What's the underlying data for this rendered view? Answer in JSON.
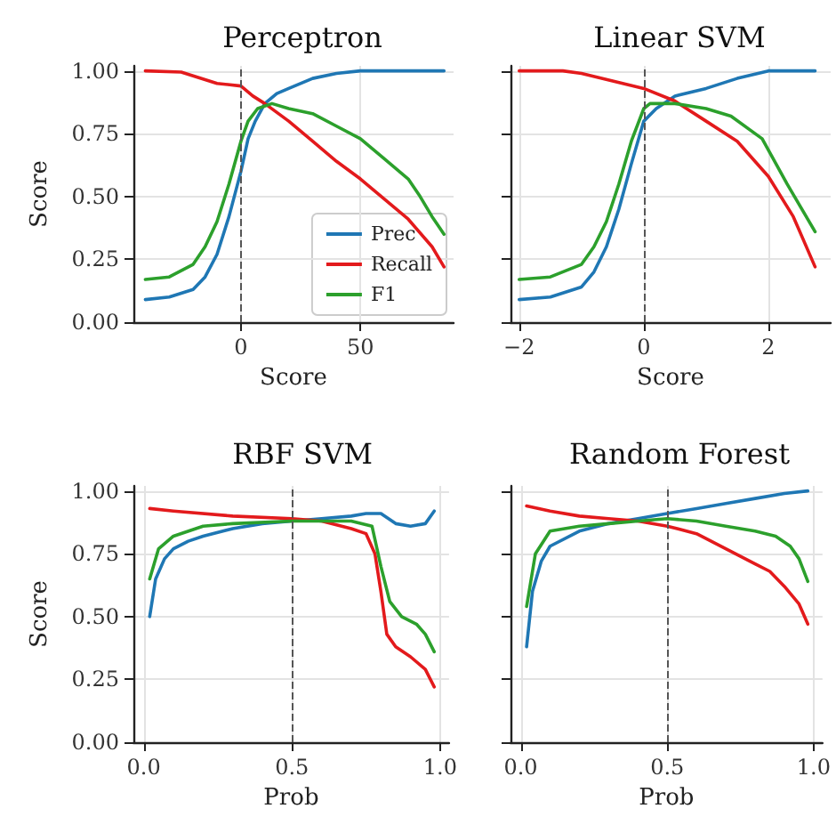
{
  "chart_data": [
    {
      "type": "line",
      "title": "Perceptron",
      "xlabel": "Score",
      "ylabel": "Score",
      "xlim": [
        -45,
        89
      ],
      "xticks": [
        0,
        50
      ],
      "ylim": [
        0,
        1.02
      ],
      "yticks": [
        {
          "value": 0,
          "label": "0.00"
        },
        {
          "value": 0.25,
          "label": "0.25"
        },
        {
          "value": 0.5,
          "label": "0.50"
        },
        {
          "value": 0.75,
          "label": "0.75"
        },
        {
          "value": 1,
          "label": "1.00"
        }
      ],
      "grid": true,
      "legend": "bottom right",
      "marker": "none",
      "ref_lines": [
        {
          "axis": "x",
          "value": 0,
          "color": "#555555",
          "line_style": "dashed"
        }
      ],
      "series": [
        {
          "name": "Prec",
          "color": "#1f77b4",
          "x": [
            -40,
            -30,
            -20,
            -15,
            -10,
            -5,
            0,
            3,
            6,
            10,
            15,
            20,
            30,
            40,
            50,
            60,
            85
          ],
          "values": [
            0.09,
            0.1,
            0.13,
            0.18,
            0.27,
            0.42,
            0.6,
            0.73,
            0.8,
            0.87,
            0.91,
            0.93,
            0.97,
            0.99,
            1.0,
            1.0,
            1.0
          ]
        },
        {
          "name": "Recall",
          "color": "#e31a1c",
          "x": [
            -40,
            -25,
            -20,
            -10,
            0,
            5,
            10,
            20,
            30,
            40,
            50,
            60,
            70,
            80,
            85
          ],
          "values": [
            1.0,
            0.995,
            0.98,
            0.95,
            0.94,
            0.9,
            0.87,
            0.8,
            0.72,
            0.64,
            0.57,
            0.49,
            0.41,
            0.3,
            0.22
          ]
        },
        {
          "name": "F1",
          "color": "#2ca02c",
          "x": [
            -40,
            -30,
            -20,
            -15,
            -10,
            -5,
            0,
            3,
            7,
            13,
            20,
            30,
            40,
            50,
            60,
            70,
            75,
            80,
            85
          ],
          "values": [
            0.17,
            0.18,
            0.23,
            0.3,
            0.4,
            0.55,
            0.72,
            0.8,
            0.85,
            0.87,
            0.85,
            0.83,
            0.78,
            0.73,
            0.65,
            0.57,
            0.5,
            0.42,
            0.35
          ]
        }
      ]
    },
    {
      "type": "line",
      "title": "Linear SVM",
      "xlabel": "Score",
      "xlim": [
        -2.14,
        3.0
      ],
      "xticks": [
        {
          "value": -2,
          "label": "−2"
        },
        0,
        2
      ],
      "ylim": [
        0,
        1.02
      ],
      "yticks": [
        0,
        0.25,
        0.5,
        0.75,
        1
      ],
      "tick_labels": "x",
      "grid": true,
      "marker": "none",
      "ref_lines": [
        {
          "axis": "x",
          "value": 0,
          "color": "#555555",
          "line_style": "dashed"
        }
      ],
      "series": [
        {
          "color": "#1f77b4",
          "x": [
            -2,
            -1.5,
            -1,
            -0.8,
            -0.6,
            -0.4,
            -0.2,
            0,
            0.2,
            0.5,
            1,
            1.5,
            2,
            2.75
          ],
          "values": [
            0.09,
            0.1,
            0.14,
            0.2,
            0.3,
            0.45,
            0.63,
            0.8,
            0.85,
            0.9,
            0.93,
            0.97,
            1.0,
            1.0
          ]
        },
        {
          "color": "#e31a1c",
          "x": [
            -2,
            -1.3,
            -1,
            -0.5,
            0,
            0.5,
            1,
            1.5,
            2,
            2.4,
            2.75
          ],
          "values": [
            1.0,
            1.0,
            0.99,
            0.96,
            0.93,
            0.88,
            0.8,
            0.72,
            0.58,
            0.42,
            0.22
          ]
        },
        {
          "color": "#2ca02c",
          "x": [
            -2,
            -1.5,
            -1,
            -0.8,
            -0.6,
            -0.4,
            -0.2,
            0,
            0.1,
            0.5,
            1,
            1.4,
            1.9,
            2.3,
            2.75
          ],
          "values": [
            0.17,
            0.18,
            0.23,
            0.3,
            0.4,
            0.55,
            0.72,
            0.85,
            0.87,
            0.87,
            0.85,
            0.82,
            0.73,
            0.55,
            0.36
          ]
        }
      ]
    },
    {
      "type": "line",
      "title": "RBF SVM",
      "xlabel": "Prob",
      "ylabel": "Score",
      "xlim": [
        -0.035,
        1.03
      ],
      "xticks": [
        {
          "value": 0,
          "label": "0.0"
        },
        0.5,
        {
          "value": 1,
          "label": "1.0"
        }
      ],
      "ylim": [
        0,
        1.02
      ],
      "yticks": [
        {
          "value": 0,
          "label": "0.00"
        },
        {
          "value": 0.25,
          "label": "0.25"
        },
        {
          "value": 0.5,
          "label": "0.50"
        },
        {
          "value": 0.75,
          "label": "0.75"
        },
        {
          "value": 1,
          "label": "1.00"
        }
      ],
      "grid": true,
      "marker": "none",
      "ref_lines": [
        {
          "axis": "x",
          "value": 0.5,
          "color": "#555555",
          "line_style": "dashed"
        }
      ],
      "series": [
        {
          "color": "#1f77b4",
          "x": [
            0.02,
            0.04,
            0.07,
            0.1,
            0.15,
            0.2,
            0.3,
            0.4,
            0.5,
            0.6,
            0.7,
            0.75,
            0.8,
            0.85,
            0.9,
            0.95,
            0.98
          ],
          "values": [
            0.5,
            0.65,
            0.73,
            0.77,
            0.8,
            0.82,
            0.85,
            0.87,
            0.88,
            0.89,
            0.9,
            0.91,
            0.91,
            0.87,
            0.86,
            0.87,
            0.92
          ]
        },
        {
          "color": "#e31a1c",
          "x": [
            0.02,
            0.1,
            0.3,
            0.5,
            0.6,
            0.7,
            0.75,
            0.78,
            0.8,
            0.82,
            0.85,
            0.9,
            0.95,
            0.98
          ],
          "values": [
            0.93,
            0.92,
            0.9,
            0.89,
            0.88,
            0.85,
            0.83,
            0.75,
            0.6,
            0.43,
            0.38,
            0.34,
            0.29,
            0.22
          ]
        },
        {
          "color": "#2ca02c",
          "x": [
            0.02,
            0.05,
            0.1,
            0.2,
            0.3,
            0.5,
            0.7,
            0.77,
            0.8,
            0.83,
            0.87,
            0.92,
            0.95,
            0.98
          ],
          "values": [
            0.65,
            0.77,
            0.82,
            0.86,
            0.87,
            0.88,
            0.88,
            0.86,
            0.7,
            0.56,
            0.5,
            0.47,
            0.43,
            0.36
          ]
        }
      ]
    },
    {
      "type": "line",
      "title": "Random Forest",
      "xlabel": "Prob",
      "xlim": [
        -0.035,
        1.03
      ],
      "xticks": [
        {
          "value": 0,
          "label": "0.0"
        },
        0.5,
        {
          "value": 1,
          "label": "1.0"
        }
      ],
      "ylim": [
        0,
        1.02
      ],
      "yticks": [
        0,
        0.25,
        0.5,
        0.75,
        1
      ],
      "tick_labels": "x",
      "grid": true,
      "marker": "none",
      "ref_lines": [
        {
          "axis": "x",
          "value": 0.5,
          "color": "#555555",
          "line_style": "dashed"
        }
      ],
      "series": [
        {
          "color": "#1f77b4",
          "x": [
            0.02,
            0.04,
            0.07,
            0.1,
            0.2,
            0.3,
            0.4,
            0.5,
            0.6,
            0.7,
            0.8,
            0.9,
            0.98
          ],
          "values": [
            0.38,
            0.6,
            0.72,
            0.78,
            0.84,
            0.87,
            0.89,
            0.91,
            0.93,
            0.95,
            0.97,
            0.99,
            1.0
          ]
        },
        {
          "color": "#e31a1c",
          "x": [
            0.02,
            0.1,
            0.2,
            0.3,
            0.4,
            0.5,
            0.6,
            0.7,
            0.8,
            0.85,
            0.9,
            0.95,
            0.98
          ],
          "values": [
            0.94,
            0.92,
            0.9,
            0.89,
            0.88,
            0.86,
            0.83,
            0.77,
            0.71,
            0.68,
            0.62,
            0.55,
            0.47
          ]
        },
        {
          "color": "#2ca02c",
          "x": [
            0.02,
            0.05,
            0.1,
            0.2,
            0.3,
            0.4,
            0.5,
            0.6,
            0.7,
            0.8,
            0.87,
            0.92,
            0.95,
            0.98
          ],
          "values": [
            0.54,
            0.75,
            0.84,
            0.86,
            0.87,
            0.88,
            0.89,
            0.88,
            0.86,
            0.84,
            0.82,
            0.78,
            0.73,
            0.64
          ]
        }
      ]
    }
  ]
}
